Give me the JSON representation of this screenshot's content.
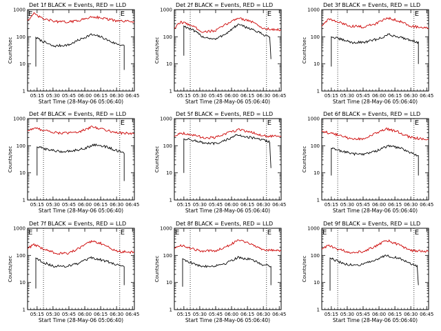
{
  "figure": {
    "title_suffix": " BLACK = Events, RED = LLD",
    "xlabel": "Start Time (28-May-06 05:06:40)",
    "ylabel": "Counts/sec",
    "x_ticks": [
      "05:15",
      "05:30",
      "05:45",
      "06:00",
      "06:15",
      "06:30",
      "06:45"
    ],
    "y_ticks": [
      "1",
      "10",
      "100",
      "1000"
    ],
    "marker_label": "E",
    "colors": {
      "events": "#000000",
      "lld": "#cc0000",
      "axis": "#000000"
    }
  },
  "chart_data": [
    {
      "type": "line",
      "detector": "Det 1f",
      "title": "Det 1f BLACK = Events, RED = LLD",
      "xlim": [
        5.1,
        6.78
      ],
      "ylim": [
        1,
        1000
      ],
      "yscale": "log",
      "vlines": [
        5.35,
        6.55
      ],
      "markers": [
        5.1,
        6.55
      ],
      "series": [
        {
          "name": "Events",
          "color": "#000000",
          "points": [
            [
              5.23,
              8
            ],
            [
              5.23,
              95
            ],
            [
              5.3,
              75
            ],
            [
              5.5,
              45
            ],
            [
              5.75,
              50
            ],
            [
              5.9,
              75
            ],
            [
              6.1,
              120
            ],
            [
              6.25,
              100
            ],
            [
              6.45,
              60
            ],
            [
              6.57,
              50
            ],
            [
              6.62,
              45
            ],
            [
              6.62,
              6
            ]
          ]
        },
        {
          "name": "LLD",
          "color": "#cc0000",
          "points": [
            [
              5.1,
              400
            ],
            [
              5.2,
              700
            ],
            [
              5.35,
              450
            ],
            [
              5.6,
              350
            ],
            [
              5.8,
              360
            ],
            [
              6.0,
              450
            ],
            [
              6.12,
              560
            ],
            [
              6.3,
              480
            ],
            [
              6.5,
              380
            ],
            [
              6.78,
              360
            ]
          ]
        }
      ]
    },
    {
      "type": "line",
      "detector": "Det 2f",
      "title": "Det 2f BLACK = Events, RED = LLD",
      "xlim": [
        5.1,
        6.78
      ],
      "ylim": [
        1,
        1000
      ],
      "yscale": "log",
      "vlines": [
        5.35,
        6.55
      ],
      "markers": [
        6.55
      ],
      "series": [
        {
          "name": "Events",
          "color": "#000000",
          "points": [
            [
              5.25,
              20
            ],
            [
              5.25,
              250
            ],
            [
              5.4,
              170
            ],
            [
              5.55,
              100
            ],
            [
              5.75,
              80
            ],
            [
              5.95,
              150
            ],
            [
              6.1,
              280
            ],
            [
              6.3,
              200
            ],
            [
              6.5,
              120
            ],
            [
              6.6,
              100
            ],
            [
              6.62,
              15
            ]
          ]
        },
        {
          "name": "LLD",
          "color": "#cc0000",
          "points": [
            [
              5.1,
              200
            ],
            [
              5.2,
              350
            ],
            [
              5.35,
              280
            ],
            [
              5.55,
              150
            ],
            [
              5.75,
              170
            ],
            [
              5.95,
              320
            ],
            [
              6.1,
              500
            ],
            [
              6.3,
              380
            ],
            [
              6.5,
              200
            ],
            [
              6.78,
              180
            ]
          ]
        }
      ]
    },
    {
      "type": "line",
      "detector": "Det 3f",
      "title": "Det 3f BLACK = Events, RED = LLD",
      "xlim": [
        5.1,
        6.78
      ],
      "ylim": [
        1,
        1000
      ],
      "yscale": "log",
      "vlines": [
        5.35,
        6.55
      ],
      "markers": [
        6.55
      ],
      "series": [
        {
          "name": "Events",
          "color": "#000000",
          "points": [
            [
              5.25,
              8
            ],
            [
              5.25,
              100
            ],
            [
              5.4,
              80
            ],
            [
              5.6,
              60
            ],
            [
              5.8,
              65
            ],
            [
              6.0,
              85
            ],
            [
              6.15,
              120
            ],
            [
              6.35,
              95
            ],
            [
              6.55,
              70
            ],
            [
              6.62,
              60
            ],
            [
              6.62,
              10
            ]
          ]
        },
        {
          "name": "LLD",
          "color": "#cc0000",
          "points": [
            [
              5.1,
              250
            ],
            [
              5.2,
              450
            ],
            [
              5.35,
              350
            ],
            [
              5.55,
              250
            ],
            [
              5.75,
              230
            ],
            [
              5.95,
              300
            ],
            [
              6.12,
              500
            ],
            [
              6.3,
              400
            ],
            [
              6.5,
              250
            ],
            [
              6.78,
              200
            ]
          ]
        }
      ]
    },
    {
      "type": "line",
      "detector": "Det 4f",
      "title": "Det 4f BLACK = Events, RED = LLD",
      "xlim": [
        5.1,
        6.78
      ],
      "ylim": [
        1,
        1000
      ],
      "yscale": "log",
      "vlines": [
        5.35,
        6.55
      ],
      "markers": [
        6.55
      ],
      "series": [
        {
          "name": "Events",
          "color": "#000000",
          "points": [
            [
              5.25,
              8
            ],
            [
              5.25,
              90
            ],
            [
              5.4,
              75
            ],
            [
              5.6,
              60
            ],
            [
              5.8,
              65
            ],
            [
              6.0,
              80
            ],
            [
              6.15,
              110
            ],
            [
              6.35,
              90
            ],
            [
              6.55,
              60
            ],
            [
              6.62,
              50
            ],
            [
              6.62,
              5
            ]
          ]
        },
        {
          "name": "LLD",
          "color": "#cc0000",
          "points": [
            [
              5.1,
              350
            ],
            [
              5.2,
              450
            ],
            [
              5.35,
              380
            ],
            [
              5.55,
              300
            ],
            [
              5.75,
              290
            ],
            [
              5.95,
              350
            ],
            [
              6.12,
              500
            ],
            [
              6.3,
              400
            ],
            [
              6.5,
              300
            ],
            [
              6.78,
              280
            ]
          ]
        }
      ]
    },
    {
      "type": "line",
      "detector": "Det 5f",
      "title": "Det 5f BLACK = Events, RED = LLD",
      "xlim": [
        5.1,
        6.78
      ],
      "ylim": [
        1,
        1000
      ],
      "yscale": "log",
      "vlines": [
        5.35,
        6.55
      ],
      "markers": [
        6.55
      ],
      "series": [
        {
          "name": "Events",
          "color": "#000000",
          "points": [
            [
              5.25,
              10
            ],
            [
              5.25,
              180
            ],
            [
              5.4,
              160
            ],
            [
              5.6,
              120
            ],
            [
              5.8,
              120
            ],
            [
              5.95,
              180
            ],
            [
              6.1,
              250
            ],
            [
              6.3,
              200
            ],
            [
              6.5,
              160
            ],
            [
              6.6,
              140
            ],
            [
              6.62,
              15
            ]
          ]
        },
        {
          "name": "LLD",
          "color": "#cc0000",
          "points": [
            [
              5.1,
              220
            ],
            [
              5.2,
              300
            ],
            [
              5.35,
              260
            ],
            [
              5.55,
              200
            ],
            [
              5.75,
              200
            ],
            [
              5.95,
              300
            ],
            [
              6.12,
              400
            ],
            [
              6.3,
              320
            ],
            [
              6.5,
              230
            ],
            [
              6.78,
              220
            ]
          ]
        }
      ]
    },
    {
      "type": "line",
      "detector": "Det 6f",
      "title": "Det 6f BLACK = Events, RED = LLD",
      "xlim": [
        5.1,
        6.78
      ],
      "ylim": [
        1,
        1000
      ],
      "yscale": "log",
      "vlines": [
        5.35,
        6.55
      ],
      "markers": [
        6.55
      ],
      "series": [
        {
          "name": "Events",
          "color": "#000000",
          "points": [
            [
              5.25,
              8
            ],
            [
              5.25,
              80
            ],
            [
              5.4,
              65
            ],
            [
              5.6,
              50
            ],
            [
              5.8,
              50
            ],
            [
              6.0,
              70
            ],
            [
              6.15,
              100
            ],
            [
              6.35,
              80
            ],
            [
              6.55,
              50
            ],
            [
              6.62,
              40
            ],
            [
              6.62,
              8
            ]
          ]
        },
        {
          "name": "LLD",
          "color": "#cc0000",
          "points": [
            [
              5.1,
              350
            ],
            [
              5.2,
              300
            ],
            [
              5.35,
              250
            ],
            [
              5.55,
              180
            ],
            [
              5.75,
              180
            ],
            [
              5.95,
              280
            ],
            [
              6.12,
              420
            ],
            [
              6.3,
              320
            ],
            [
              6.5,
              200
            ],
            [
              6.78,
              170
            ]
          ]
        }
      ]
    },
    {
      "type": "line",
      "detector": "Det 7f",
      "title": "Det 7f BLACK = Events, RED = LLD",
      "xlim": [
        5.1,
        6.78
      ],
      "ylim": [
        1,
        1000
      ],
      "yscale": "log",
      "vlines": [
        5.35,
        6.55
      ],
      "markers": [
        5.1,
        6.55
      ],
      "series": [
        {
          "name": "Events",
          "color": "#000000",
          "points": [
            [
              5.23,
              6
            ],
            [
              5.23,
              80
            ],
            [
              5.35,
              55
            ],
            [
              5.5,
              40
            ],
            [
              5.7,
              40
            ],
            [
              5.9,
              50
            ],
            [
              6.1,
              80
            ],
            [
              6.3,
              65
            ],
            [
              6.5,
              45
            ],
            [
              6.62,
              40
            ],
            [
              6.62,
              8
            ]
          ]
        },
        {
          "name": "LLD",
          "color": "#cc0000",
          "points": [
            [
              5.1,
              180
            ],
            [
              5.2,
              250
            ],
            [
              5.35,
              170
            ],
            [
              5.55,
              120
            ],
            [
              5.75,
              120
            ],
            [
              5.95,
              200
            ],
            [
              6.12,
              350
            ],
            [
              6.3,
              250
            ],
            [
              6.5,
              140
            ],
            [
              6.78,
              130
            ]
          ]
        }
      ]
    },
    {
      "type": "line",
      "detector": "Det 8f",
      "title": "Det 8f BLACK = Events, RED = LLD",
      "xlim": [
        5.1,
        6.78
      ],
      "ylim": [
        1,
        1000
      ],
      "yscale": "log",
      "vlines": [
        5.35,
        6.55
      ],
      "markers": [
        5.1,
        6.55
      ],
      "series": [
        {
          "name": "Events",
          "color": "#000000",
          "points": [
            [
              5.23,
              7
            ],
            [
              5.23,
              75
            ],
            [
              5.35,
              55
            ],
            [
              5.5,
              40
            ],
            [
              5.7,
              40
            ],
            [
              5.9,
              50
            ],
            [
              6.1,
              85
            ],
            [
              6.3,
              70
            ],
            [
              6.5,
              45
            ],
            [
              6.62,
              40
            ],
            [
              6.62,
              8
            ]
          ]
        },
        {
          "name": "LLD",
          "color": "#cc0000",
          "points": [
            [
              5.1,
              180
            ],
            [
              5.2,
              240
            ],
            [
              5.35,
              180
            ],
            [
              5.55,
              140
            ],
            [
              5.75,
              150
            ],
            [
              5.95,
              230
            ],
            [
              6.12,
              380
            ],
            [
              6.3,
              270
            ],
            [
              6.5,
              160
            ],
            [
              6.78,
              150
            ]
          ]
        }
      ]
    },
    {
      "type": "line",
      "detector": "Det 9f",
      "title": "Det 9f BLACK = Events, RED = LLD",
      "xlim": [
        5.1,
        6.78
      ],
      "ylim": [
        1,
        1000
      ],
      "yscale": "log",
      "vlines": [
        5.35,
        6.55
      ],
      "markers": [
        5.1,
        6.55
      ],
      "series": [
        {
          "name": "Events",
          "color": "#000000",
          "points": [
            [
              5.23,
              5
            ],
            [
              5.23,
              80
            ],
            [
              5.35,
              60
            ],
            [
              5.5,
              45
            ],
            [
              5.7,
              45
            ],
            [
              5.9,
              60
            ],
            [
              6.1,
              100
            ],
            [
              6.3,
              80
            ],
            [
              6.5,
              50
            ],
            [
              6.6,
              40
            ],
            [
              6.62,
              8
            ]
          ]
        },
        {
          "name": "LLD",
          "color": "#cc0000",
          "points": [
            [
              5.1,
              170
            ],
            [
              5.2,
              230
            ],
            [
              5.35,
              170
            ],
            [
              5.55,
              130
            ],
            [
              5.75,
              140
            ],
            [
              5.95,
              220
            ],
            [
              6.12,
              360
            ],
            [
              6.3,
              250
            ],
            [
              6.5,
              150
            ],
            [
              6.78,
              140
            ]
          ]
        }
      ]
    }
  ]
}
